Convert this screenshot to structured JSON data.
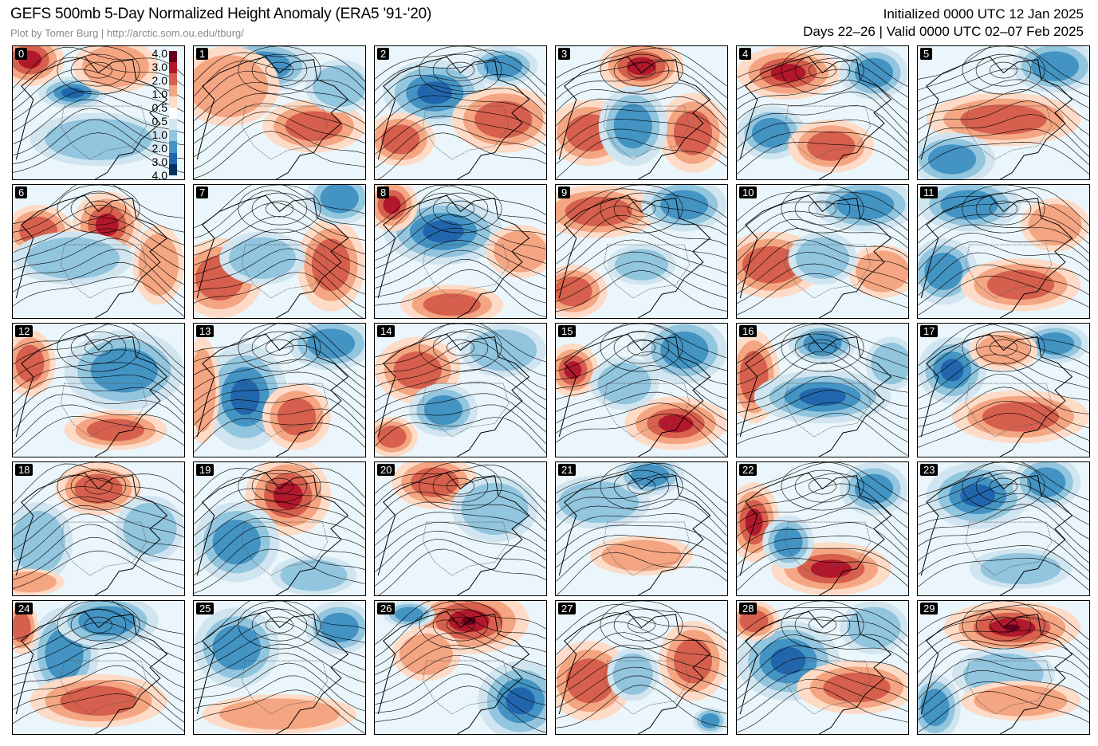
{
  "header": {
    "title": "GEFS 500mb 5-Day Normalized Height Anomaly (ERA5 '91-'20)",
    "credit": "Plot by Tomer Burg | http://arctic.som.ou.edu/tburg/",
    "initialized": "Initialized 0000 UTC 12 Jan 2025",
    "valid": "Days 22–26 | Valid 0000 UTC 02–07 Feb 2025"
  },
  "colorbar": {
    "labels": [
      "4.0",
      "3.0",
      "2.0",
      "1.0",
      "0.5",
      "0.5",
      "1.0",
      "2.0",
      "3.0",
      "4.0"
    ],
    "colors": [
      "#67001f",
      "#b2182b",
      "#d6604d",
      "#f4a582",
      "#fddbc7",
      "#ffffff",
      "#d1e5f0",
      "#92c5de",
      "#4393c3",
      "#2166ac",
      "#053061"
    ]
  },
  "panels": [
    {
      "label": "0"
    },
    {
      "label": "1"
    },
    {
      "label": "2"
    },
    {
      "label": "3"
    },
    {
      "label": "4"
    },
    {
      "label": "5"
    },
    {
      "label": "6"
    },
    {
      "label": "7"
    },
    {
      "label": "8"
    },
    {
      "label": "9"
    },
    {
      "label": "10"
    },
    {
      "label": "11"
    },
    {
      "label": "12"
    },
    {
      "label": "13"
    },
    {
      "label": "14"
    },
    {
      "label": "15"
    },
    {
      "label": "16"
    },
    {
      "label": "17"
    },
    {
      "label": "18"
    },
    {
      "label": "19"
    },
    {
      "label": "20"
    },
    {
      "label": "21"
    },
    {
      "label": "22"
    },
    {
      "label": "23"
    },
    {
      "label": "24"
    },
    {
      "label": "25"
    },
    {
      "label": "26"
    },
    {
      "label": "27"
    },
    {
      "label": "28"
    },
    {
      "label": "29"
    }
  ]
}
